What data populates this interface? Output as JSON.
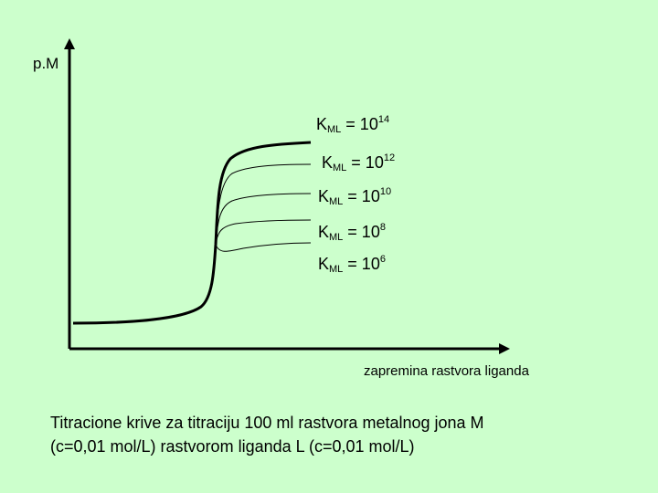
{
  "y_axis_label": "p.M",
  "x_axis_label": "zapremina rastvora liganda",
  "curve_labels": [
    {
      "k": "K",
      "sub": "ML",
      "eq": " = 10",
      "exp": "14"
    },
    {
      "k": "K",
      "sub": "ML",
      "eq": " = 10",
      "exp": "12"
    },
    {
      "k": "K",
      "sub": "ML",
      "eq": " = 10",
      "exp": "10"
    },
    {
      "k": "K",
      "sub": "ML",
      "eq": " = 10",
      "exp": "8"
    },
    {
      "k": "K",
      "sub": "ML",
      "eq": " = 10",
      "exp": "6"
    }
  ],
  "caption_line1": "Titracione krive za titraciju 100 ml rastvora metalnog jona M",
  "caption_line2": "(c=0,01 mol/L) rastvorom liganda L (c=0,01 mol/L)",
  "colors": {
    "background": "#ccffcc",
    "lines": "#000000"
  }
}
